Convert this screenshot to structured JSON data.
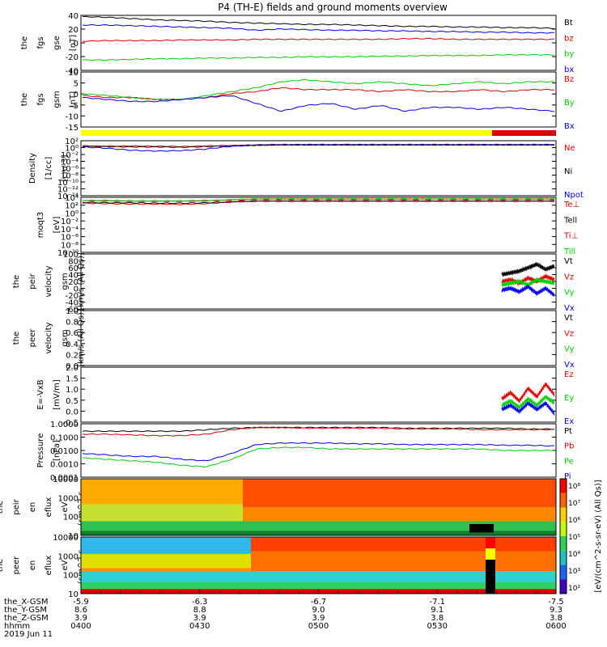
{
  "title": "P4 (TH-E) fields and ground moments overview",
  "colors": {
    "black": "#000000",
    "red": "#e00000",
    "green": "#00d000",
    "blue": "#0000e0",
    "yellow": "#ffff00"
  },
  "chart_data": [
    {
      "type": "line",
      "id": "p1",
      "ylabel": [
        "the",
        "fgs",
        "gse",
        "[nT]"
      ],
      "ylim": [
        -40,
        45
      ],
      "yticks": [
        "40",
        "20",
        "0",
        "-20",
        "-40"
      ],
      "series": [
        {
          "name": "Bt",
          "color": "black",
          "values": [
            43,
            42,
            40,
            38,
            37,
            36,
            34,
            33,
            32,
            31,
            31,
            30,
            29,
            28,
            28,
            27,
            27,
            26,
            26,
            25
          ]
        },
        {
          "name": "bz",
          "color": "red",
          "values": [
            5,
            6,
            6,
            6,
            7,
            7,
            7,
            8,
            8,
            8,
            8,
            8,
            8,
            9,
            9,
            8,
            8,
            8,
            8,
            8
          ]
        },
        {
          "name": "by",
          "color": "green",
          "values": [
            -24,
            -24,
            -23,
            -22,
            -22,
            -21,
            -21,
            -20,
            -20,
            -19,
            -19,
            -19,
            -18,
            -18,
            -17,
            -17,
            -17,
            -16,
            -16,
            -16
          ]
        },
        {
          "name": "bx",
          "color": "blue",
          "values": [
            30,
            30,
            29,
            28,
            27,
            26,
            25,
            22,
            24,
            23,
            22,
            22,
            21,
            21,
            20,
            20,
            19,
            19,
            18,
            18
          ]
        }
      ]
    },
    {
      "type": "line",
      "id": "p2",
      "ylabel": [
        "the",
        "fgs",
        "gsm",
        "[nT]"
      ],
      "ylim": [
        -18,
        10
      ],
      "yticks": [
        "10",
        "5",
        "0",
        "-5",
        "-10",
        "-15"
      ],
      "series": [
        {
          "name": "Bz",
          "color": "red",
          "values": [
            -2,
            -3,
            -3,
            -4,
            -4,
            -3,
            -1,
            0,
            2,
            1,
            1,
            1,
            0,
            1,
            0,
            0,
            1,
            0,
            1,
            1
          ]
        },
        {
          "name": "By",
          "color": "green",
          "values": [
            -1,
            -2,
            -3,
            -4,
            -4,
            -2,
            0,
            2,
            5,
            6,
            5,
            4,
            5,
            4,
            3,
            4,
            5,
            4,
            5,
            5
          ]
        },
        {
          "name": "Bx",
          "color": "blue",
          "values": [
            -3,
            -4,
            -5,
            -5,
            -4,
            -3,
            -2,
            -6,
            -10,
            -7,
            -6,
            -9,
            -7,
            -10,
            -8,
            -8,
            -9,
            -8,
            -9,
            -10
          ]
        }
      ]
    },
    {
      "type": "line",
      "id": "p3",
      "ylabel": [
        "Density",
        "[1/cc]",
        "[cm-3]"
      ],
      "ylim": [
        -14,
        2
      ],
      "log": true,
      "yticks": [
        "10²",
        "10⁰",
        "10⁻²",
        "10⁻⁴",
        "10⁻⁶",
        "10⁻⁸",
        "10⁻¹⁰",
        "10⁻¹²",
        "10⁻¹⁴"
      ],
      "series": [
        {
          "name": "Ne",
          "color": "red",
          "values": [
            0.5,
            0.4,
            0.5,
            0.4,
            0.3,
            0.5,
            0.6,
            0.8,
            0.9,
            0.9,
            0.9,
            0.9,
            0.9,
            0.9,
            0.9,
            0.9,
            0.9,
            0.9,
            0.9,
            0.9
          ]
        },
        {
          "name": "Ni",
          "color": "black",
          "values": [
            0.4,
            0.3,
            0.2,
            0.2,
            0.1,
            0.3,
            0.5,
            0.7,
            0.8,
            0.8,
            0.8,
            0.8,
            0.8,
            0.8,
            0.8,
            0.8,
            0.8,
            0.8,
            0.8,
            0.8
          ]
        },
        {
          "name": "Npot",
          "color": "blue",
          "values": [
            0.2,
            -0.2,
            -0.8,
            -1,
            -0.9,
            -0.4,
            0.4,
            0.7,
            0.8,
            0.8,
            0.8,
            0.8,
            0.8,
            0.8,
            0.8,
            0.8,
            0.8,
            0.8,
            0.8,
            0.8
          ]
        }
      ]
    },
    {
      "type": "line",
      "id": "p4",
      "ylabel": [
        "moqt3",
        "[eV]"
      ],
      "ylim": [
        -10,
        4
      ],
      "log": true,
      "yticks": [
        "10⁴",
        "10²",
        "10⁰",
        "10⁻²",
        "10⁻⁴",
        "10⁻⁶",
        "10⁻⁸",
        "10⁻¹⁰"
      ],
      "series": [
        {
          "name": "Te⊥",
          "color": "red",
          "values": [
            2.5,
            2.4,
            2.3,
            2.3,
            2.2,
            2.4,
            2.8,
            3,
            3,
            3,
            3,
            3,
            3,
            3,
            3,
            3,
            3,
            3,
            3,
            3
          ]
        },
        {
          "name": "Tell",
          "color": "black",
          "values": [
            2.7,
            2.6,
            2.6,
            2.5,
            2.5,
            2.6,
            2.9,
            3.1,
            3.1,
            3.1,
            3.1,
            3.1,
            3.1,
            3.1,
            3.1,
            3.1,
            3.1,
            3.1,
            3.1,
            3.1
          ]
        },
        {
          "name": "Ti⊥",
          "color": "red",
          "values": [
            3.1,
            3.1,
            3,
            3,
            3,
            3.1,
            3.3,
            3.5,
            3.5,
            3.5,
            3.5,
            3.5,
            3.5,
            3.5,
            3.5,
            3.5,
            3.5,
            3.5,
            3.5,
            3.5
          ]
        },
        {
          "name": "Till",
          "color": "green",
          "values": [
            3.2,
            3.2,
            3.1,
            3.1,
            3.1,
            3.2,
            3.4,
            3.6,
            3.6,
            3.6,
            3.6,
            3.6,
            3.6,
            3.6,
            3.6,
            3.6,
            3.6,
            3.6,
            3.6,
            3.6
          ]
        }
      ]
    },
    {
      "type": "line",
      "id": "p5",
      "ylabel": [
        "the",
        "peir",
        "velocity",
        "gsm",
        "[km/s (All Qs)]"
      ],
      "ylim": [
        -60,
        100
      ],
      "yticks": [
        "100",
        "80",
        "60",
        "40",
        "20",
        "0",
        "-20",
        "-40",
        "-60"
      ],
      "series": [
        {
          "name": "Vt",
          "color": "black",
          "values": [
            40,
            45,
            50,
            60,
            70,
            55,
            65
          ]
        },
        {
          "name": "Vz",
          "color": "red",
          "values": [
            20,
            25,
            15,
            30,
            20,
            35,
            25
          ]
        },
        {
          "name": "Vy",
          "color": "green",
          "values": [
            10,
            15,
            20,
            10,
            25,
            20,
            15
          ]
        },
        {
          "name": "Vx",
          "color": "blue",
          "values": [
            -5,
            0,
            -10,
            5,
            -15,
            0,
            -20
          ]
        }
      ]
    },
    {
      "type": "line",
      "id": "p6",
      "ylabel": [
        "the",
        "peer",
        "velocity",
        "gsm",
        "[km/s (All Qs)]"
      ],
      "ylim": [
        0,
        1
      ],
      "yticks": [
        "1.0",
        "0.8",
        "0.6",
        "0.4",
        "0.2",
        "0.0"
      ],
      "series": [
        {
          "name": "Vt",
          "color": "black",
          "values": []
        },
        {
          "name": "Vz",
          "color": "red",
          "values": []
        },
        {
          "name": "Vy",
          "color": "green",
          "values": []
        },
        {
          "name": "Vx",
          "color": "blue",
          "values": []
        }
      ]
    },
    {
      "type": "line",
      "id": "p7",
      "ylabel": [
        "E=-VxB",
        "[mV/m]"
      ],
      "ylim": [
        -0.6,
        2.0
      ],
      "yticks": [
        "2.0",
        "1.5",
        "1.0",
        "0.5",
        "0.0",
        "-0.5"
      ],
      "series": [
        {
          "name": "Ez",
          "color": "red",
          "values": [
            0.5,
            0.8,
            0.4,
            1.0,
            0.6,
            1.2,
            0.7
          ]
        },
        {
          "name": "Ey",
          "color": "green",
          "values": [
            0.2,
            0.4,
            0.1,
            0.5,
            0.2,
            0.6,
            0.3
          ]
        },
        {
          "name": "Ex",
          "color": "blue",
          "values": [
            0,
            0.2,
            -0.1,
            0.3,
            0,
            0.3,
            -0.2
          ]
        }
      ]
    },
    {
      "type": "line",
      "id": "p8",
      "ylabel": [
        "Pressure",
        "[nPa]"
      ],
      "ylim": [
        -3.5,
        0.1
      ],
      "log": true,
      "yticks": [
        "1.0000",
        "0.1000",
        "0.0100",
        "0.0010",
        "0.0001"
      ],
      "series": [
        {
          "name": "Pt",
          "color": "black",
          "values": [
            -0.4,
            -0.4,
            -0.4,
            -0.4,
            -0.4,
            -0.3,
            -0.2,
            -0.15,
            -0.15,
            -0.15,
            -0.15,
            -0.15,
            -0.15,
            -0.2,
            -0.2,
            -0.2,
            -0.2,
            -0.2,
            -0.25,
            -0.25
          ]
        },
        {
          "name": "Pb",
          "color": "red",
          "values": [
            -0.6,
            -0.6,
            -0.65,
            -0.7,
            -0.7,
            -0.6,
            -0.3,
            -0.15,
            -0.15,
            -0.2,
            -0.2,
            -0.2,
            -0.2,
            -0.25,
            -0.25,
            -0.25,
            -0.3,
            -0.3,
            -0.3,
            -0.3
          ]
        },
        {
          "name": "Pe",
          "color": "green",
          "values": [
            -2.2,
            -2.3,
            -2.4,
            -2.5,
            -2.7,
            -2.8,
            -2.3,
            -1.6,
            -1.5,
            -1.5,
            -1.6,
            -1.6,
            -1.6,
            -1.6,
            -1.6,
            -1.6,
            -1.6,
            -1.7,
            -1.7,
            -1.7
          ]
        },
        {
          "name": "Pi",
          "color": "blue",
          "values": [
            -1.9,
            -2,
            -2.1,
            -2.1,
            -2.3,
            -2.4,
            -1.9,
            -1.3,
            -1.2,
            -1.2,
            -1.2,
            -1.25,
            -1.25,
            -1.3,
            -1.3,
            -1.3,
            -1.3,
            -1.35,
            -1.35,
            -1.4
          ]
        }
      ]
    },
    {
      "type": "heatmap",
      "id": "p9",
      "ylabel": [
        "the",
        "peir",
        "en",
        "eflux",
        "eV",
        "(cm^2-s-",
        "sr-eV)"
      ],
      "yticks": [
        "10000",
        "1000",
        "100",
        "10"
      ],
      "ylim": [
        5,
        30000
      ]
    },
    {
      "type": "heatmap",
      "id": "p10",
      "ylabel": [
        "the",
        "peer",
        "en",
        "eflux",
        "eV",
        "(cm^2-s-",
        "sr-eV)"
      ],
      "yticks": [
        "10000",
        "1000",
        "100",
        "10"
      ],
      "ylim": [
        5,
        30000
      ]
    }
  ],
  "colorbar": {
    "label": "[eV/(cm^2-s-sr-eV) (All Qs)]",
    "ticks": [
      "10⁸",
      "10⁷",
      "10⁶",
      "10⁵",
      "10⁴",
      "10³",
      "10²"
    ]
  },
  "xaxis": {
    "rows": [
      {
        "label": "the_X-GSM",
        "values": [
          "-5.9",
          "-6.3",
          "-6.7",
          "-7.1",
          "-7.5"
        ]
      },
      {
        "label": "the_Y-GSM",
        "values": [
          "8.6",
          "8.8",
          "9.0",
          "9.1",
          "9.3"
        ]
      },
      {
        "label": "the_Z-GSM",
        "values": [
          "3.9",
          "3.9",
          "3.9",
          "3.8",
          "3.8"
        ]
      },
      {
        "label": "hhmm",
        "values": [
          "0400",
          "0430",
          "0500",
          "0530",
          "0600"
        ]
      }
    ],
    "date": "2019 Jun 11"
  }
}
